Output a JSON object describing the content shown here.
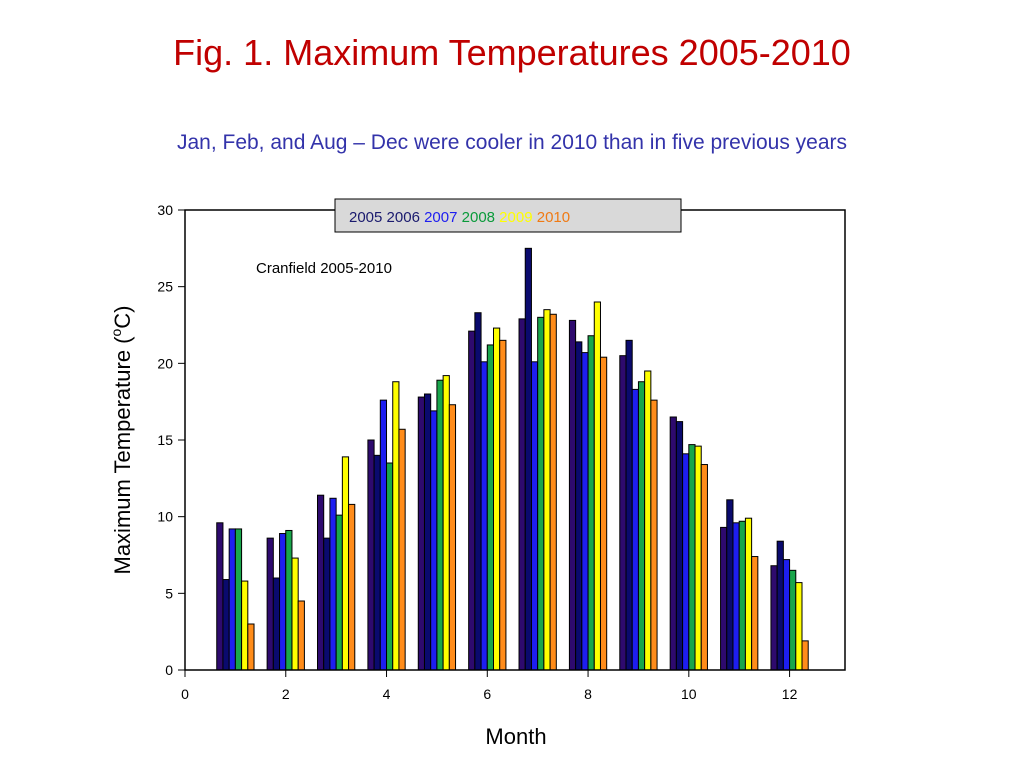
{
  "title": "Fig. 1. Maximum Temperatures 2005-2010",
  "subtitle": "Jan, Feb, and Aug – Dec were cooler in 2010 than in five previous years",
  "chart_data": {
    "type": "bar",
    "annotation": "Cranfield 2005-2010",
    "xlabel": "Month",
    "ylabel_prefix": "Maximum Temperature (",
    "ylabel_sup": "o",
    "ylabel_suffix": "C)",
    "xlim": [
      0,
      13.1
    ],
    "ylim": [
      0,
      30
    ],
    "xticks": [
      0,
      2,
      4,
      6,
      8,
      10,
      12
    ],
    "yticks": [
      0,
      5,
      10,
      15,
      20,
      25,
      30
    ],
    "legend_position": "top-center",
    "grid": false,
    "categories": [
      1,
      2,
      3,
      4,
      5,
      6,
      7,
      8,
      9,
      10,
      11,
      12
    ],
    "series": [
      {
        "name": "2005",
        "color": "#2e0a6e",
        "legend_color": "#1a1a6e",
        "values": [
          9.6,
          8.6,
          11.4,
          15.0,
          17.8,
          22.1,
          22.9,
          22.8,
          20.5,
          16.5,
          9.3,
          6.8
        ]
      },
      {
        "name": "2006",
        "color": "#0a0a6e",
        "legend_color": "#1a1a6e",
        "values": [
          5.9,
          6.0,
          8.6,
          14.0,
          18.0,
          23.3,
          27.5,
          21.4,
          21.5,
          16.2,
          11.1,
          8.4
        ]
      },
      {
        "name": "2007",
        "color": "#1e1ef0",
        "legend_color": "#1e1ef0",
        "values": [
          9.2,
          8.9,
          11.2,
          17.6,
          16.9,
          20.1,
          20.1,
          20.7,
          18.3,
          14.1,
          9.6,
          7.2
        ]
      },
      {
        "name": "2008",
        "color": "#19a64b",
        "legend_color": "#0a9a3a",
        "values": [
          9.2,
          9.1,
          10.1,
          13.5,
          18.9,
          21.2,
          23.0,
          21.8,
          18.8,
          14.7,
          9.7,
          6.5
        ]
      },
      {
        "name": "2009",
        "color": "#ffff00",
        "legend_color": "#ffff00",
        "values": [
          5.8,
          7.3,
          13.9,
          18.8,
          19.2,
          22.3,
          23.5,
          24.0,
          19.5,
          14.6,
          9.9,
          5.7
        ]
      },
      {
        "name": "2010",
        "color": "#ff8c1a",
        "legend_color": "#f07a14",
        "values": [
          3.0,
          4.5,
          10.8,
          15.7,
          17.3,
          21.5,
          23.2,
          20.4,
          17.6,
          13.4,
          7.4,
          1.9
        ]
      }
    ]
  }
}
